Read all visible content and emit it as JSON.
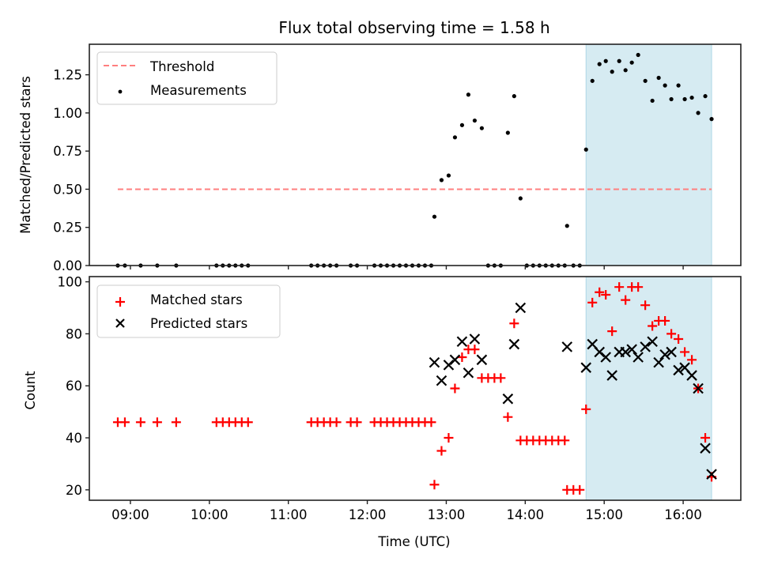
{
  "chart_data": [
    {
      "type": "scatter",
      "title": "Flux total observing time = 1.58 h",
      "xlabel": "",
      "ylabel": "Matched/Predicted stars",
      "ylim": [
        0,
        1.45
      ],
      "xlim": [
        8.48,
        16.73
      ],
      "yticks": [
        0,
        0.25,
        0.5,
        0.75,
        1.0,
        1.25
      ],
      "ytick_labels": [
        "0.00",
        "0.25",
        "0.50",
        "0.75",
        "1.00",
        "1.25"
      ],
      "xticks": [
        9,
        10,
        11,
        12,
        13,
        14,
        15,
        16
      ],
      "highlight_span": {
        "x_start": 14.77,
        "x_end": 16.36,
        "color": "#add8e6"
      },
      "threshold": {
        "name": "Threshold",
        "value": 0.5,
        "x_start": 8.84,
        "x_end": 16.36,
        "color": "#ff7f7f",
        "style": "dashed"
      },
      "legend": {
        "position": "upper-left",
        "entries": [
          "Threshold",
          "Measurements"
        ]
      },
      "series": [
        {
          "name": "Measurements",
          "color": "#000000",
          "marker": "dot",
          "x": [
            8.84,
            8.93,
            9.13,
            9.34,
            9.58,
            10.09,
            10.17,
            10.25,
            10.33,
            10.41,
            10.49,
            11.29,
            11.37,
            11.45,
            11.53,
            11.61,
            11.79,
            11.87,
            12.09,
            12.17,
            12.25,
            12.33,
            12.41,
            12.49,
            12.57,
            12.65,
            12.73,
            12.81,
            12.85,
            12.94,
            13.03,
            13.11,
            13.2,
            13.28,
            13.36,
            13.45,
            13.53,
            13.61,
            13.69,
            13.78,
            13.86,
            13.94,
            14.02,
            14.1,
            14.18,
            14.26,
            14.34,
            14.42,
            14.5,
            14.53,
            14.61,
            14.69,
            14.77,
            14.85,
            14.94,
            15.02,
            15.1,
            15.19,
            15.27,
            15.35,
            15.43,
            15.52,
            15.61,
            15.69,
            15.77,
            15.85,
            15.94,
            16.02,
            16.11,
            16.19,
            16.28,
            16.36
          ],
          "y": [
            0,
            0,
            0,
            0,
            0,
            0,
            0,
            0,
            0,
            0,
            0,
            0,
            0,
            0,
            0,
            0,
            0,
            0,
            0,
            0,
            0,
            0,
            0,
            0,
            0,
            0,
            0,
            0,
            0.32,
            0.56,
            0.59,
            0.84,
            0.92,
            1.12,
            0.95,
            0.9,
            0,
            0,
            0,
            0.87,
            1.11,
            0.44,
            0,
            0,
            0,
            0,
            0,
            0,
            0,
            0.26,
            0,
            0,
            0.76,
            1.21,
            1.32,
            1.34,
            1.27,
            1.34,
            1.28,
            1.33,
            1.38,
            1.21,
            1.08,
            1.23,
            1.18,
            1.09,
            1.18,
            1.09,
            1.1,
            1.0,
            1.11,
            0.96
          ]
        }
      ]
    },
    {
      "type": "scatter",
      "title": "",
      "xlabel": "Time (UTC)",
      "ylabel": "Count",
      "ylim": [
        16,
        102
      ],
      "xlim": [
        8.48,
        16.73
      ],
      "yticks": [
        20,
        40,
        60,
        80,
        100
      ],
      "ytick_labels": [
        "20",
        "40",
        "60",
        "80",
        "100"
      ],
      "xticks": [
        9,
        10,
        11,
        12,
        13,
        14,
        15,
        16
      ],
      "xtick_labels": [
        "09:00",
        "10:00",
        "11:00",
        "12:00",
        "13:00",
        "14:00",
        "15:00",
        "16:00"
      ],
      "highlight_span": {
        "x_start": 14.77,
        "x_end": 16.36,
        "color": "#add8e6"
      },
      "legend": {
        "position": "upper-left",
        "entries": [
          "Matched stars",
          "Predicted stars"
        ]
      },
      "series": [
        {
          "name": "Matched stars",
          "color": "#ff0000",
          "marker": "plus",
          "x": [
            8.84,
            8.93,
            9.13,
            9.34,
            9.58,
            10.09,
            10.17,
            10.25,
            10.33,
            10.41,
            10.49,
            11.29,
            11.37,
            11.45,
            11.53,
            11.61,
            11.79,
            11.87,
            12.09,
            12.17,
            12.25,
            12.33,
            12.41,
            12.49,
            12.57,
            12.65,
            12.73,
            12.81,
            12.85,
            12.94,
            13.03,
            13.11,
            13.2,
            13.28,
            13.36,
            13.45,
            13.53,
            13.61,
            13.69,
            13.78,
            13.86,
            13.94,
            14.02,
            14.1,
            14.18,
            14.26,
            14.34,
            14.42,
            14.5,
            14.53,
            14.61,
            14.69,
            14.77,
            14.85,
            14.94,
            15.02,
            15.1,
            15.19,
            15.27,
            15.35,
            15.43,
            15.52,
            15.61,
            15.69,
            15.77,
            15.85,
            15.94,
            16.02,
            16.11,
            16.19,
            16.28,
            16.36
          ],
          "y": [
            46,
            46,
            46,
            46,
            46,
            46,
            46,
            46,
            46,
            46,
            46,
            46,
            46,
            46,
            46,
            46,
            46,
            46,
            46,
            46,
            46,
            46,
            46,
            46,
            46,
            46,
            46,
            46,
            22,
            35,
            40,
            59,
            71,
            74,
            74,
            63,
            63,
            63,
            63,
            48,
            84,
            39,
            39,
            39,
            39,
            39,
            39,
            39,
            39,
            20,
            20,
            20,
            51,
            92,
            96,
            95,
            81,
            98,
            93,
            98,
            98,
            91,
            83,
            85,
            85,
            80,
            78,
            73,
            70,
            59,
            40,
            25
          ]
        },
        {
          "name": "Predicted stars",
          "color": "#000000",
          "marker": "x",
          "x": [
            12.85,
            12.94,
            13.03,
            13.11,
            13.2,
            13.28,
            13.36,
            13.45,
            13.78,
            13.86,
            13.94,
            14.53,
            14.77,
            14.85,
            14.94,
            15.02,
            15.1,
            15.19,
            15.27,
            15.35,
            15.43,
            15.52,
            15.61,
            15.69,
            15.77,
            15.85,
            15.94,
            16.02,
            16.11,
            16.19,
            16.28,
            16.36
          ],
          "y": [
            69,
            62,
            68,
            70,
            77,
            65,
            78,
            70,
            55,
            76,
            90,
            75,
            67,
            76,
            73,
            71,
            64,
            73,
            73,
            74,
            71,
            75,
            77,
            69,
            72,
            73,
            66,
            67,
            64,
            59,
            36,
            26
          ]
        }
      ]
    }
  ]
}
